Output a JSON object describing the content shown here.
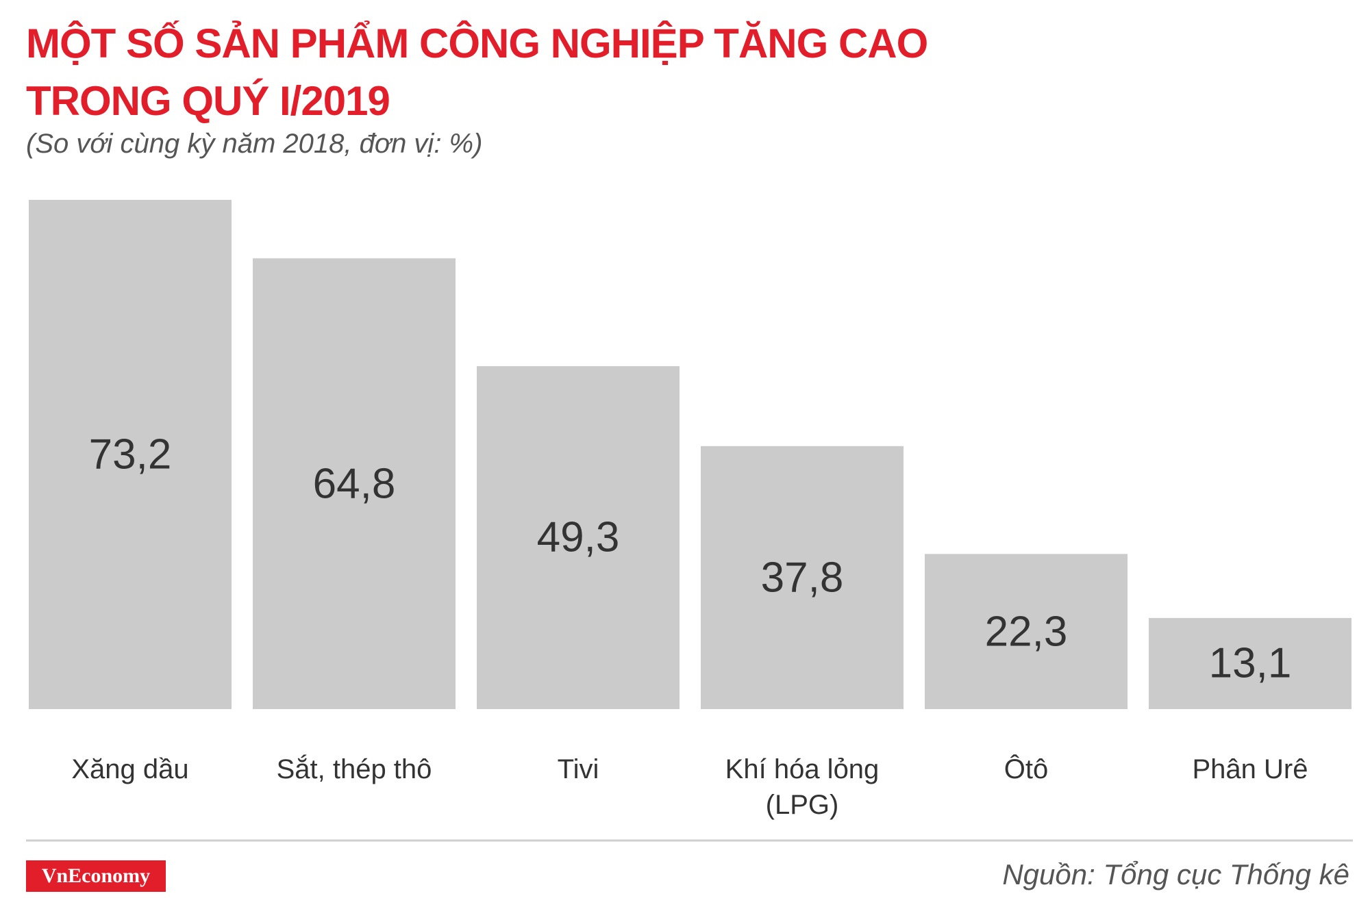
{
  "chart_data": {
    "type": "bar",
    "title": "MỘT SỐ SẢN PHẨM CÔNG NGHIỆP TĂNG CAO TRONG QUÝ I/2019",
    "subtitle": "(So với cùng kỳ năm 2018, đơn vị: %)",
    "categories": [
      "Xăng dầu",
      "Sắt, thép thô",
      "Tivi",
      "Khí hóa lỏng (LPG)",
      "Ôtô",
      "Phân Urê"
    ],
    "values": [
      73.2,
      64.8,
      49.3,
      37.8,
      22.3,
      13.1
    ],
    "value_labels": [
      "73,2",
      "64,8",
      "49,3",
      "37,8",
      "22,3",
      "13,1"
    ],
    "color": "#cccbcc",
    "logo": "VnEconomy",
    "source": "Nguồn: Tổng cục Thống kê"
  }
}
